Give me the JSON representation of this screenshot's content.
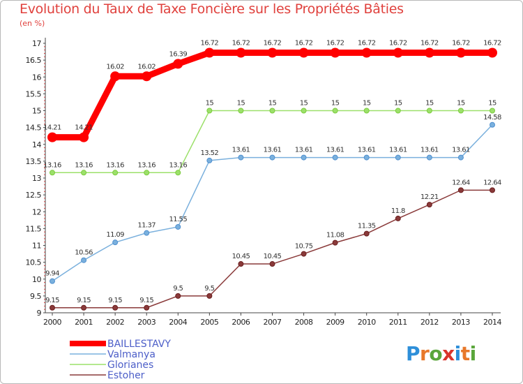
{
  "header": {
    "title": "Evolution du Taux de Taxe Foncière sur les Propriétés Bâties",
    "unit": "(en %)"
  },
  "brand": {
    "logo_text": "Proxiti",
    "letter_colors": [
      "#2e8fd9",
      "#e8782a",
      "#5aa63b",
      "#d9342b",
      "#2e8fd9",
      "#e8782a",
      "#5aa63b"
    ]
  },
  "chart_data": {
    "type": "line",
    "title": "Evolution du Taux de Taxe Foncière sur les Propriétés Bâties",
    "ylabel": "(en %)",
    "xlabel": "",
    "x": [
      "2000",
      "2001",
      "2002",
      "2003",
      "2004",
      "2005",
      "2006",
      "2007",
      "2008",
      "2009",
      "2010",
      "2011",
      "2012",
      "2013",
      "2014"
    ],
    "ylim": [
      9,
      17
    ],
    "yticks": [
      "9",
      "9.5",
      "10",
      "10.5",
      "11",
      "11.5",
      "12",
      "12.5",
      "13",
      "13.5",
      "14",
      "14.5",
      "15",
      "15.5",
      "16",
      "16.5",
      "17"
    ],
    "grid": false,
    "legend_position": "bottom-left",
    "series": [
      {
        "name": "BAILLESTAVY",
        "color": "#ff0000",
        "emphasis": "thick",
        "values": [
          14.21,
          14.21,
          16.02,
          16.02,
          16.39,
          16.72,
          16.72,
          16.72,
          16.72,
          16.72,
          16.72,
          16.72,
          16.72,
          16.72,
          16.72
        ],
        "labels": [
          "14.21",
          "14.21",
          "16.02",
          "16.02",
          "16.39",
          "16.72",
          "16.72",
          "16.72",
          "16.72",
          "16.72",
          "16.72",
          "16.72",
          "16.72",
          "16.72",
          "16.72"
        ]
      },
      {
        "name": "Valmanya",
        "color": "#7ab0dd",
        "marker_color": "#4f8fcf",
        "values": [
          9.94,
          10.56,
          11.09,
          11.37,
          11.55,
          13.52,
          13.61,
          13.61,
          13.61,
          13.61,
          13.61,
          13.61,
          13.61,
          13.61,
          14.58
        ],
        "labels": [
          "9.94",
          "10.56",
          "11.09",
          "11.37",
          "11.55",
          "13.52",
          "13.61",
          "13.61",
          "13.61",
          "13.61",
          "13.61",
          "13.61",
          "13.61",
          "13.61",
          "14.58"
        ]
      },
      {
        "name": "Glorianes",
        "color": "#9ce06a",
        "marker_color": "#7ccc3e",
        "values": [
          13.16,
          13.16,
          13.16,
          13.16,
          13.16,
          15,
          15,
          15,
          15,
          15,
          15,
          15,
          15,
          15,
          15
        ],
        "labels": [
          "13.16",
          "13.16",
          "13.16",
          "13.16",
          "13.16",
          "15",
          "15",
          "15",
          "15",
          "15",
          "15",
          "15",
          "15",
          "15",
          "15"
        ]
      },
      {
        "name": "Estoher",
        "color": "#8a3a3a",
        "marker_color": "#6b1f1f",
        "values": [
          9.15,
          9.15,
          9.15,
          9.15,
          9.5,
          9.5,
          10.45,
          10.45,
          10.75,
          11.08,
          11.35,
          11.8,
          12.21,
          12.64,
          12.64
        ],
        "labels": [
          "9.15",
          "9.15",
          "9.15",
          "9.15",
          "9.5",
          "9.5",
          "10.45",
          "10.45",
          "10.75",
          "11.08",
          "11.35",
          "11.8",
          "12.21",
          "12.64",
          "12.64"
        ]
      }
    ]
  }
}
